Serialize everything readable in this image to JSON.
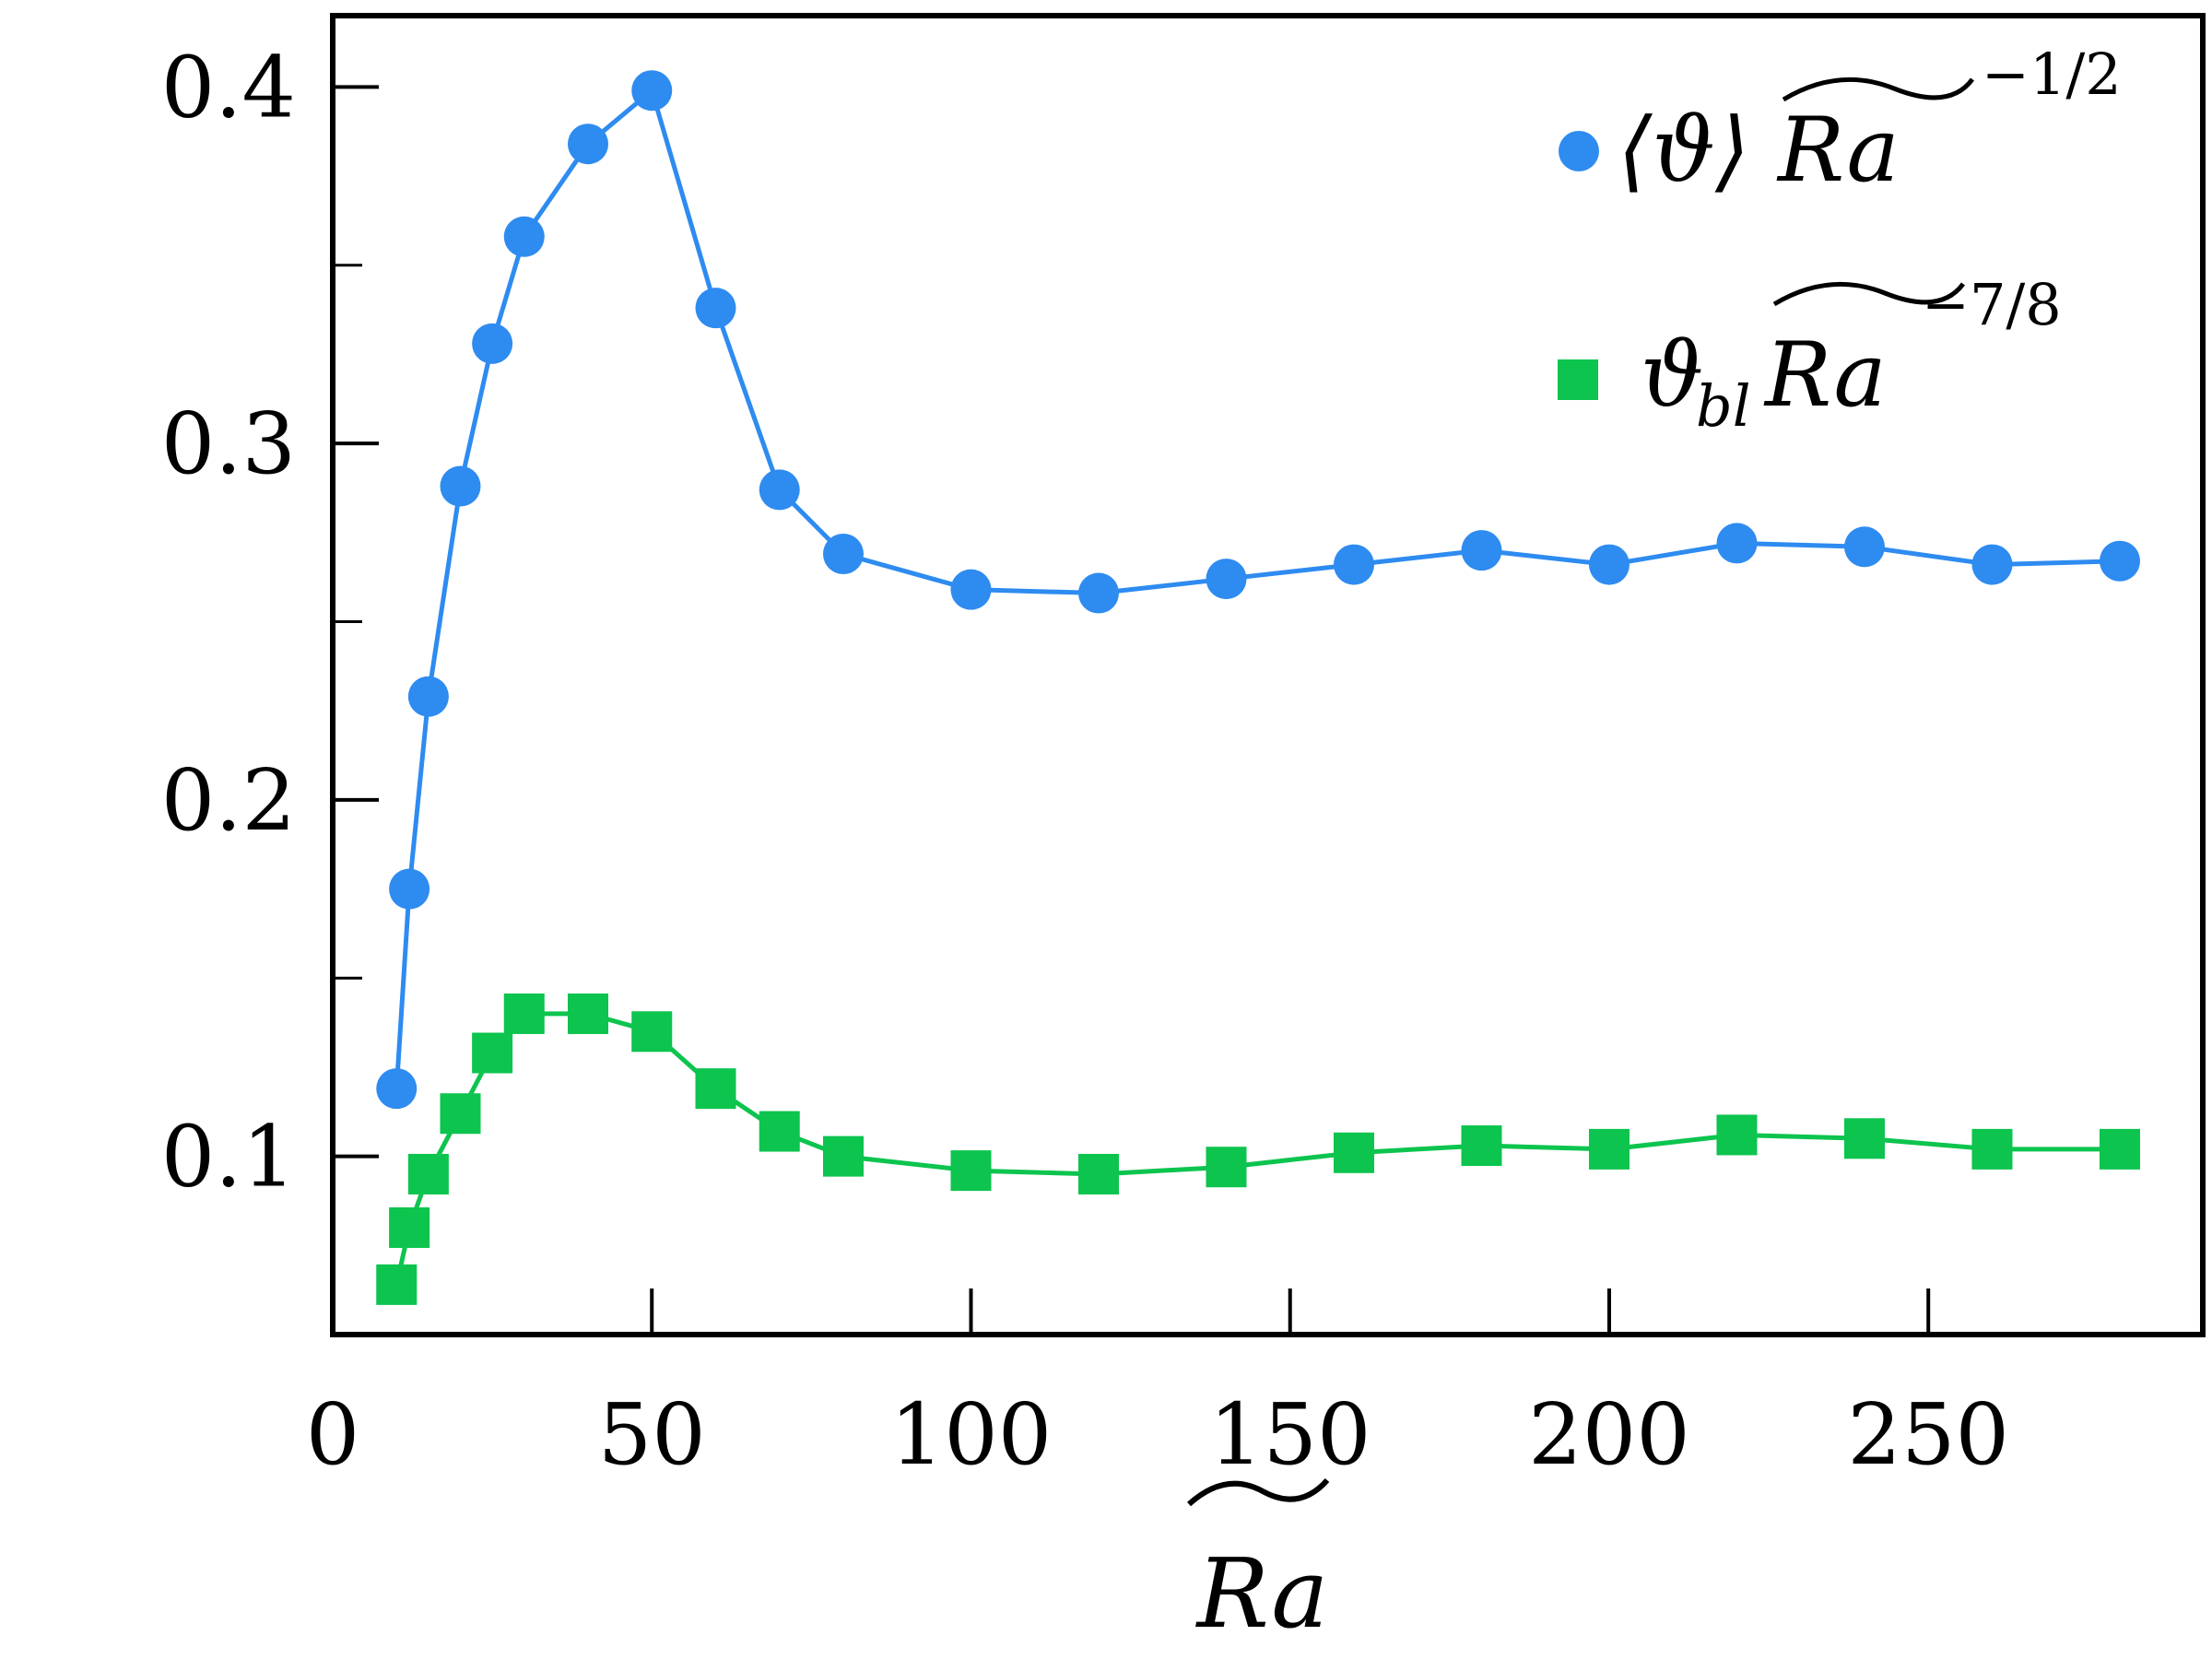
{
  "chart_data": {
    "type": "line",
    "title": "",
    "xlabel": "Ra",
    "xlabel_decoration": "tilde",
    "ylabel": "",
    "xlim": [
      0,
      293
    ],
    "ylim": [
      0.05,
      0.42
    ],
    "x_ticks": [
      0,
      50,
      100,
      150,
      200,
      250
    ],
    "x_tick_labels": [
      "0",
      "50",
      "100",
      "150",
      "200",
      "250"
    ],
    "y_ticks_major": [
      0.1,
      0.2,
      0.3,
      0.4
    ],
    "y_tick_labels": [
      "0.1",
      "0.2",
      "0.3",
      "0.4"
    ],
    "y_ticks_minor": [
      0.15,
      0.25,
      0.35
    ],
    "grid": false,
    "legend_position": "top-right",
    "series": [
      {
        "name": "⟨ϑ⟩ Ra^(−1/2)",
        "legend_main": "⟨ϑ⟩ Ra",
        "legend_exponent": "−1/2",
        "color": "#2e8bf0",
        "marker": "circle",
        "x": [
          10,
          12,
          15,
          20,
          25,
          30,
          40,
          50,
          60,
          70,
          80,
          100,
          120,
          140,
          160,
          180,
          200,
          220,
          240,
          260,
          280
        ],
        "values": [
          0.119,
          0.175,
          0.229,
          0.288,
          0.328,
          0.358,
          0.384,
          0.399,
          0.338,
          0.287,
          0.269,
          0.259,
          0.258,
          0.262,
          0.266,
          0.27,
          0.266,
          0.272,
          0.271,
          0.266,
          0.267
        ]
      },
      {
        "name": "ϑ_bl Ra^(−7/8)",
        "legend_main": "ϑ",
        "legend_sub": "bl",
        "legend_main2": "Ra",
        "legend_exponent": "−7/8",
        "color": "#0cc44e",
        "marker": "square",
        "x": [
          10,
          12,
          15,
          20,
          25,
          30,
          40,
          50,
          60,
          70,
          80,
          100,
          120,
          140,
          160,
          180,
          200,
          220,
          240,
          260,
          280
        ],
        "values": [
          0.064,
          0.08,
          0.095,
          0.112,
          0.129,
          0.14,
          0.14,
          0.135,
          0.119,
          0.107,
          0.1,
          0.096,
          0.095,
          0.097,
          0.101,
          0.103,
          0.102,
          0.106,
          0.105,
          0.102,
          0.102
        ]
      }
    ]
  }
}
